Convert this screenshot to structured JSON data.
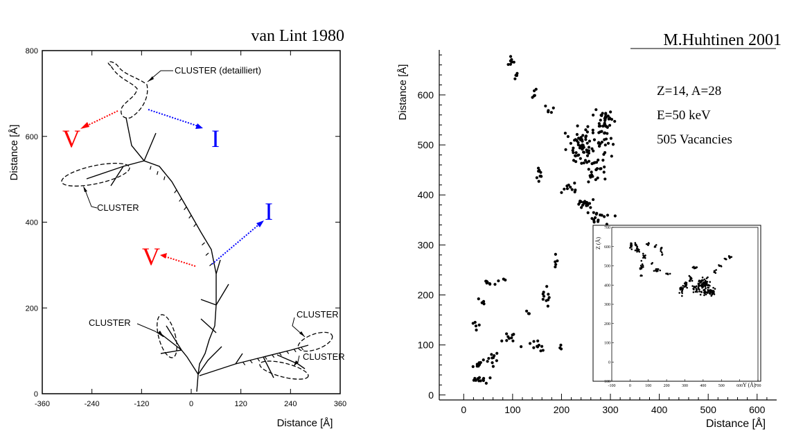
{
  "chart_data": [
    {
      "type": "diagram",
      "credit": "van Lint 1980",
      "xlabel": "Distance  [Å]",
      "ylabel": "Distance  [Å]",
      "xticks": [
        "-360",
        "-240",
        "-120",
        "0",
        "120",
        "240",
        "360"
      ],
      "yticks": [
        "0",
        "200",
        "400",
        "600",
        "800"
      ],
      "xlim": [
        -360,
        360
      ],
      "ylim": [
        0,
        800
      ],
      "annotations": [
        "CLUSTER (detailliert)",
        "CLUSTER",
        "CLUSTER",
        "CLUSTER",
        "CLUSTER"
      ],
      "markers": [
        "V",
        "I",
        "V",
        "I"
      ],
      "colors": {
        "V": "#ff0000",
        "I": "#0000ff"
      }
    },
    {
      "type": "scatter",
      "credit": "M.Huhtinen 2001",
      "xlabel": "Distance  [Å]",
      "ylabel": "Distance  [Å]",
      "xticks": [
        "0",
        "100",
        "200",
        "300",
        "400",
        "500",
        "600"
      ],
      "yticks": [
        "0",
        "100",
        "200",
        "300",
        "400",
        "500",
        "600"
      ],
      "xlim": [
        -50,
        640
      ],
      "ylim": [
        -10,
        690
      ],
      "info": [
        "Z=14, A=28",
        "E=50 keV",
        "505 Vacancies"
      ],
      "inset": {
        "xlabel": "Y (Å)",
        "ylabel": "Z (Å)",
        "xticks": [
          "-100",
          "0",
          "100",
          "200",
          "300",
          "400",
          "500",
          "600",
          "700"
        ],
        "yticks": [
          "-100",
          "0",
          "100",
          "200",
          "300",
          "400",
          "500",
          "600",
          "700"
        ]
      },
      "clusters": [
        {
          "cx": 95,
          "cy": 665,
          "n": 8,
          "sx": 8,
          "sy": 10
        },
        {
          "cx": 110,
          "cy": 640,
          "n": 5,
          "sx": 8,
          "sy": 6
        },
        {
          "cx": 145,
          "cy": 595,
          "n": 6,
          "sx": 8,
          "sy": 15
        },
        {
          "cx": 175,
          "cy": 570,
          "n": 5,
          "sx": 12,
          "sy": 5
        },
        {
          "cx": 240,
          "cy": 500,
          "n": 60,
          "sx": 20,
          "sy": 25
        },
        {
          "cx": 285,
          "cy": 520,
          "n": 40,
          "sx": 15,
          "sy": 30
        },
        {
          "cx": 295,
          "cy": 555,
          "n": 15,
          "sx": 8,
          "sy": 10
        },
        {
          "cx": 265,
          "cy": 455,
          "n": 25,
          "sx": 15,
          "sy": 20
        },
        {
          "cx": 155,
          "cy": 440,
          "n": 10,
          "sx": 8,
          "sy": 12
        },
        {
          "cx": 215,
          "cy": 415,
          "n": 10,
          "sx": 12,
          "sy": 8
        },
        {
          "cx": 250,
          "cy": 380,
          "n": 20,
          "sx": 12,
          "sy": 15
        },
        {
          "cx": 280,
          "cy": 355,
          "n": 15,
          "sx": 18,
          "sy": 8
        },
        {
          "cx": 55,
          "cy": 225,
          "n": 8,
          "sx": 12,
          "sy": 5
        },
        {
          "cx": 75,
          "cy": 230,
          "n": 3,
          "sx": 10,
          "sy": 3
        },
        {
          "cx": 35,
          "cy": 180,
          "n": 4,
          "sx": 5,
          "sy": 15
        },
        {
          "cx": 25,
          "cy": 140,
          "n": 5,
          "sx": 6,
          "sy": 8
        },
        {
          "cx": 30,
          "cy": 60,
          "n": 8,
          "sx": 6,
          "sy": 10
        },
        {
          "cx": 60,
          "cy": 75,
          "n": 10,
          "sx": 8,
          "sy": 12
        },
        {
          "cx": 100,
          "cy": 110,
          "n": 10,
          "sx": 15,
          "sy": 12
        },
        {
          "cx": 150,
          "cy": 100,
          "n": 10,
          "sx": 10,
          "sy": 12
        },
        {
          "cx": 35,
          "cy": 30,
          "n": 12,
          "sx": 15,
          "sy": 5
        },
        {
          "cx": 170,
          "cy": 200,
          "n": 10,
          "sx": 6,
          "sy": 15
        },
        {
          "cx": 185,
          "cy": 265,
          "n": 5,
          "sx": 5,
          "sy": 12
        },
        {
          "cx": 130,
          "cy": 165,
          "n": 3,
          "sx": 5,
          "sy": 3
        },
        {
          "cx": 195,
          "cy": 95,
          "n": 3,
          "sx": 5,
          "sy": 3
        }
      ]
    }
  ]
}
